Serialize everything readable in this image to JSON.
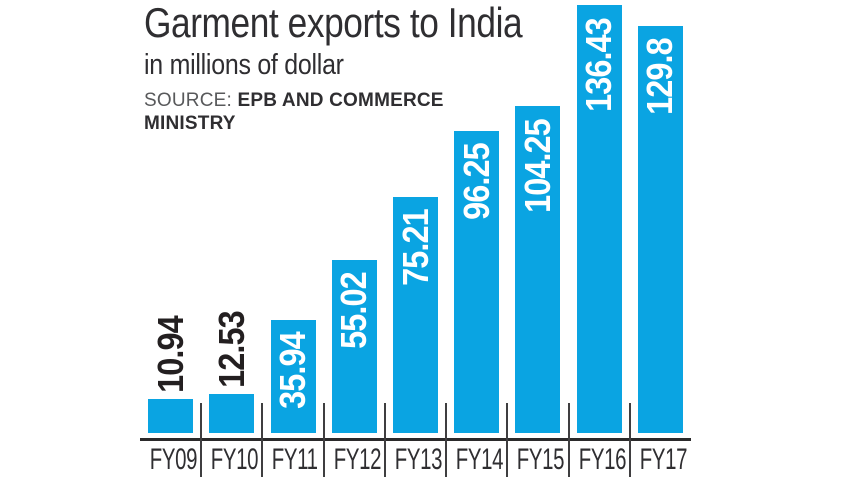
{
  "header": {
    "title": "Garment exports to India",
    "subtitle": "in millions of dollar",
    "source_label": "SOURCE:",
    "source_value": "EPB AND COMMERCE MINISTRY"
  },
  "colors": {
    "bar": "#0aa4e2",
    "title_text": "#2f2e31",
    "value_label_inside": "#ffffff",
    "value_label_outside": "#231f20",
    "axis_line": "#2b2a2b",
    "source_label_gray": "#58595b"
  },
  "chart_data": {
    "type": "bar",
    "title": "Garment exports to India",
    "subtitle": "in millions of dollar",
    "source": "SOURCE: EPB AND COMMERCE MINISTRY",
    "categories": [
      "FY09",
      "FY10",
      "FY11",
      "FY12",
      "FY13",
      "FY14",
      "FY15",
      "FY16",
      "FY17"
    ],
    "values": [
      10.94,
      12.53,
      35.94,
      55.02,
      75.21,
      96.25,
      104.25,
      136.43,
      129.8
    ],
    "value_labels": [
      "10.94",
      "12.53",
      "35.94",
      "55.02",
      "75.21",
      "96.25",
      "104.25",
      "136.43",
      "129.8"
    ],
    "value_label_placement": [
      "outside",
      "outside",
      "inside",
      "inside",
      "inside",
      "inside",
      "inside",
      "inside",
      "inside"
    ],
    "value_label_rotation": "vertical-bottom-to-top",
    "xlabel": "",
    "ylabel": "millions of dollar",
    "ylim": [
      0,
      140
    ],
    "grid": false,
    "legend": false
  }
}
